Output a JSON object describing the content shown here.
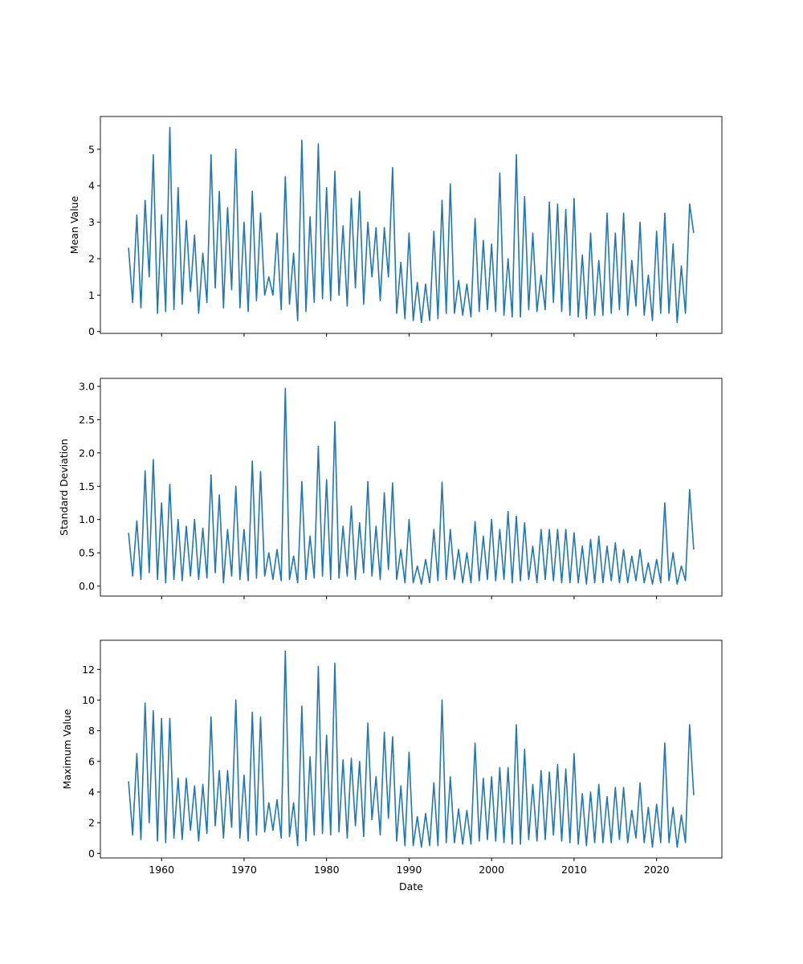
{
  "chart_data": [
    {
      "type": "line",
      "ylabel": "Mean Value",
      "xlabel": "",
      "ylim": [
        -0.05,
        5.9
      ],
      "yticks": [
        0,
        1,
        2,
        3,
        4,
        5
      ],
      "color": "#1f77b4",
      "values": [
        2.3,
        0.8,
        3.2,
        0.65,
        3.6,
        1.5,
        4.85,
        0.5,
        3.2,
        0.55,
        5.6,
        0.6,
        3.95,
        0.75,
        3.05,
        1.1,
        2.65,
        0.5,
        2.15,
        0.8,
        4.85,
        1.2,
        3.85,
        0.65,
        3.4,
        1.15,
        5.0,
        0.65,
        3.0,
        0.55,
        3.85,
        0.85,
        3.25,
        1.0,
        1.5,
        1.0,
        2.7,
        0.6,
        4.25,
        0.75,
        2.15,
        0.3,
        5.25,
        0.55,
        3.15,
        0.8,
        5.15,
        0.9,
        3.95,
        0.85,
        4.4,
        1.0,
        2.9,
        0.7,
        3.65,
        1.2,
        3.85,
        0.75,
        3.0,
        1.5,
        2.85,
        0.85,
        2.85,
        1.5,
        4.5,
        0.5,
        1.9,
        0.35,
        2.7,
        0.3,
        1.35,
        0.25,
        1.3,
        0.3,
        2.75,
        0.35,
        3.6,
        0.5,
        4.05,
        0.5,
        1.4,
        0.45,
        1.3,
        0.4,
        3.1,
        0.55,
        2.5,
        0.6,
        2.4,
        0.55,
        4.35,
        0.45,
        2.0,
        0.4,
        4.85,
        0.4,
        3.7,
        0.6,
        2.7,
        0.55,
        1.55,
        0.6,
        3.55,
        0.8,
        3.5,
        0.55,
        3.35,
        0.45,
        3.65,
        0.4,
        2.1,
        0.35,
        2.7,
        0.45,
        1.95,
        0.45,
        3.25,
        0.5,
        2.7,
        0.6,
        3.25,
        0.45,
        1.95,
        0.7,
        3.0,
        0.45,
        1.55,
        0.3,
        2.75,
        0.5,
        3.25,
        0.5,
        2.4,
        0.25,
        1.8,
        0.5,
        3.5,
        2.7
      ]
    },
    {
      "type": "line",
      "ylabel": "Standard Deviation",
      "xlabel": "",
      "ylim": [
        -0.15,
        3.12
      ],
      "yticks": [
        0.0,
        0.5,
        1.0,
        1.5,
        2.0,
        2.5,
        3.0
      ],
      "color": "#1f77b4",
      "values": [
        0.8,
        0.15,
        0.98,
        0.1,
        1.73,
        0.2,
        1.9,
        0.1,
        1.25,
        0.05,
        1.53,
        0.1,
        1.0,
        0.08,
        0.9,
        0.15,
        1.0,
        0.1,
        0.87,
        0.12,
        1.67,
        0.2,
        1.37,
        0.05,
        0.85,
        0.15,
        1.5,
        0.1,
        0.85,
        0.08,
        1.88,
        0.12,
        1.72,
        0.15,
        0.5,
        0.1,
        0.55,
        0.08,
        2.97,
        0.1,
        0.45,
        0.05,
        1.57,
        0.1,
        0.75,
        0.12,
        2.1,
        0.15,
        1.6,
        0.1,
        2.47,
        0.12,
        0.9,
        0.15,
        1.2,
        0.1,
        0.95,
        0.2,
        1.57,
        0.15,
        0.9,
        0.1,
        1.4,
        0.25,
        1.55,
        0.1,
        0.55,
        0.05,
        1.0,
        0.05,
        0.3,
        0.03,
        0.4,
        0.05,
        0.85,
        0.08,
        1.56,
        0.1,
        0.85,
        0.1,
        0.55,
        0.05,
        0.5,
        0.05,
        0.97,
        0.08,
        0.75,
        0.1,
        1.0,
        0.08,
        0.85,
        0.1,
        1.12,
        0.05,
        1.05,
        0.08,
        0.95,
        0.1,
        0.6,
        0.05,
        0.85,
        0.1,
        0.85,
        0.08,
        0.85,
        0.05,
        0.85,
        0.05,
        0.8,
        0.05,
        0.6,
        0.03,
        0.7,
        0.05,
        0.75,
        0.05,
        0.6,
        0.08,
        0.65,
        0.05,
        0.55,
        0.05,
        0.45,
        0.08,
        0.55,
        0.05,
        0.35,
        0.03,
        0.4,
        0.05,
        1.25,
        0.08,
        0.5,
        0.03,
        0.3,
        0.08,
        1.45,
        0.55
      ]
    },
    {
      "type": "line",
      "ylabel": "Maximum Value",
      "xlabel": "Date",
      "ylim": [
        -0.3,
        13.9
      ],
      "yticks": [
        0,
        2,
        4,
        6,
        8,
        10,
        12
      ],
      "xticks": [
        "1960",
        "1970",
        "1980",
        "1990",
        "2000",
        "2010",
        "2020"
      ],
      "color": "#1f77b4",
      "values": [
        4.7,
        1.2,
        6.5,
        0.9,
        9.8,
        2.0,
        9.3,
        0.8,
        8.8,
        0.7,
        8.8,
        1.0,
        4.9,
        0.9,
        4.9,
        1.5,
        4.4,
        0.8,
        4.5,
        1.3,
        8.9,
        1.8,
        5.4,
        1.0,
        5.4,
        1.7,
        10.0,
        1.0,
        5.1,
        0.8,
        9.2,
        1.2,
        8.9,
        1.4,
        3.3,
        1.5,
        3.5,
        1.0,
        13.2,
        1.1,
        3.3,
        0.5,
        9.6,
        0.8,
        6.3,
        1.2,
        12.2,
        1.3,
        7.7,
        1.2,
        12.4,
        1.4,
        6.1,
        1.0,
        6.2,
        1.8,
        6.0,
        1.1,
        8.5,
        2.2,
        5.0,
        1.2,
        7.9,
        2.3,
        7.6,
        0.8,
        4.4,
        0.5,
        6.6,
        0.5,
        2.4,
        0.4,
        2.6,
        0.5,
        4.6,
        0.5,
        10.0,
        0.7,
        5.0,
        0.7,
        2.9,
        0.6,
        2.8,
        0.6,
        7.2,
        0.8,
        4.9,
        0.9,
        5.0,
        0.8,
        5.6,
        0.7,
        5.6,
        0.6,
        8.4,
        0.6,
        6.8,
        0.9,
        4.5,
        0.8,
        5.4,
        0.9,
        5.3,
        1.2,
        5.8,
        0.8,
        5.5,
        0.7,
        6.5,
        0.6,
        3.9,
        0.5,
        4.0,
        0.7,
        4.5,
        0.7,
        3.7,
        0.7,
        4.3,
        0.9,
        4.3,
        0.7,
        2.8,
        1.0,
        4.6,
        0.7,
        3.0,
        0.4,
        3.2,
        0.7,
        7.2,
        0.7,
        3.0,
        0.4,
        2.5,
        0.7,
        8.4,
        3.8
      ]
    }
  ],
  "x_dates_note_free": true,
  "x_range": [
    "1952-08",
    "2027-12"
  ],
  "x_first": "1956-01",
  "x_last": "2024-07"
}
